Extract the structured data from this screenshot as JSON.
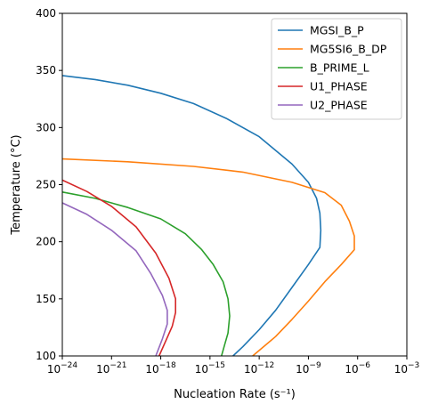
{
  "chart_data": {
    "type": "line",
    "xlabel": "Nucleation Rate",
    "xlabel_unit": "(s⁻¹)",
    "ylabel": "Temperature (°C)",
    "x_scale": "log",
    "xlim_exp": [
      -24,
      -3
    ],
    "x_tick_exps": [
      -24,
      -21,
      -18,
      -15,
      -12,
      -9,
      -6,
      -3
    ],
    "x_tick_base": "10",
    "ylim": [
      100,
      400
    ],
    "y_ticks": [
      100,
      150,
      200,
      250,
      300,
      350,
      400
    ],
    "grid": false,
    "legend_position": "top-right",
    "series": [
      {
        "name": "MGSI_B_P",
        "color": "#1f77b4",
        "points_log10x_y": [
          [
            -24,
            345.5
          ],
          [
            -22,
            342
          ],
          [
            -20,
            337
          ],
          [
            -18,
            330
          ],
          [
            -16,
            321
          ],
          [
            -14,
            308
          ],
          [
            -12,
            292
          ],
          [
            -10,
            268
          ],
          [
            -9,
            252
          ],
          [
            -8.5,
            238
          ],
          [
            -8.3,
            225
          ],
          [
            -8.25,
            210
          ],
          [
            -8.3,
            195
          ],
          [
            -9,
            180
          ],
          [
            -10,
            160
          ],
          [
            -11,
            140
          ],
          [
            -12,
            123
          ],
          [
            -13,
            108
          ],
          [
            -13.6,
            100
          ]
        ]
      },
      {
        "name": "MG5SI6_B_DP",
        "color": "#ff7f0e",
        "points_log10x_y": [
          [
            -24,
            272.5
          ],
          [
            -20,
            270
          ],
          [
            -16,
            266
          ],
          [
            -13,
            261
          ],
          [
            -10,
            252
          ],
          [
            -8,
            243
          ],
          [
            -7,
            232
          ],
          [
            -6.5,
            218
          ],
          [
            -6.2,
            205
          ],
          [
            -6.2,
            193
          ],
          [
            -7,
            180
          ],
          [
            -8,
            165
          ],
          [
            -9,
            148
          ],
          [
            -10,
            132
          ],
          [
            -11,
            117
          ],
          [
            -12.4,
            100
          ]
        ]
      },
      {
        "name": "B_PRIME_L",
        "color": "#2ca02c",
        "points_log10x_y": [
          [
            -24,
            243.5
          ],
          [
            -22,
            238
          ],
          [
            -20,
            230
          ],
          [
            -18,
            220
          ],
          [
            -16.5,
            207
          ],
          [
            -15.5,
            193
          ],
          [
            -14.8,
            180
          ],
          [
            -14.2,
            165
          ],
          [
            -13.9,
            150
          ],
          [
            -13.8,
            135
          ],
          [
            -13.9,
            120
          ],
          [
            -14.1,
            110
          ],
          [
            -14.3,
            100
          ]
        ]
      },
      {
        "name": "U1_PHASE",
        "color": "#d62728",
        "points_log10x_y": [
          [
            -24,
            254
          ],
          [
            -22.5,
            244
          ],
          [
            -21,
            231
          ],
          [
            -19.5,
            213
          ],
          [
            -18.3,
            190
          ],
          [
            -17.5,
            168
          ],
          [
            -17.1,
            150
          ],
          [
            -17.1,
            138
          ],
          [
            -17.3,
            126
          ],
          [
            -17.7,
            113
          ],
          [
            -18.1,
            100
          ]
        ]
      },
      {
        "name": "U2_PHASE",
        "color": "#9467bd",
        "points_log10x_y": [
          [
            -24,
            234
          ],
          [
            -22.5,
            224
          ],
          [
            -21,
            210
          ],
          [
            -19.5,
            192
          ],
          [
            -18.6,
            172
          ],
          [
            -17.9,
            153
          ],
          [
            -17.6,
            140
          ],
          [
            -17.6,
            128
          ],
          [
            -17.9,
            115
          ],
          [
            -18.3,
            100
          ]
        ]
      }
    ]
  }
}
